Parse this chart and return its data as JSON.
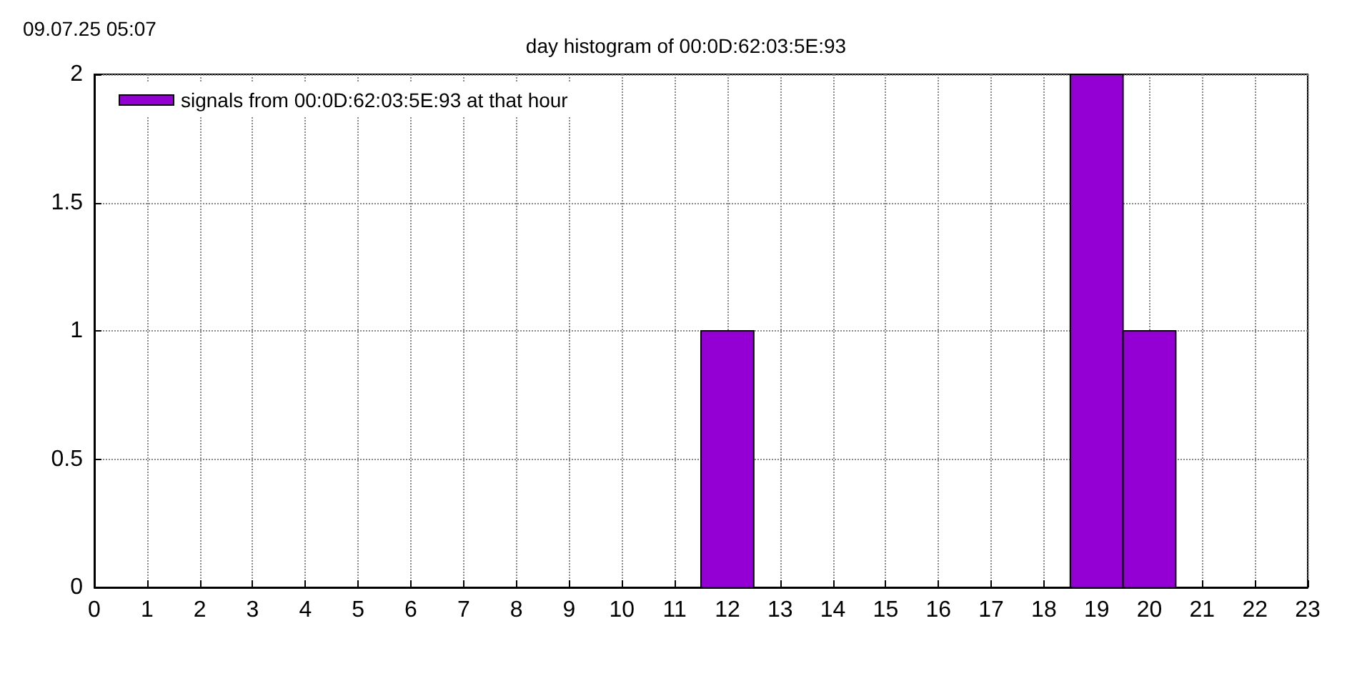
{
  "chart_data": {
    "type": "bar",
    "title": "day histogram of 00:0D:62:03:5E:93",
    "annotations": [
      "09.07.25 05:07"
    ],
    "x": [
      12,
      19,
      20
    ],
    "series": [
      {
        "name": "signals from 00:0D:62:03:5E:93 at that hour",
        "color": "#9400d3",
        "values": [
          1,
          2,
          1
        ]
      }
    ],
    "xlim": [
      0,
      23
    ],
    "xticks": [
      0,
      1,
      2,
      3,
      4,
      5,
      6,
      7,
      8,
      9,
      10,
      11,
      12,
      13,
      14,
      15,
      16,
      17,
      18,
      19,
      20,
      21,
      22,
      23
    ],
    "ylim": [
      0,
      2
    ],
    "yticks": [
      0,
      0.5,
      1,
      1.5,
      2
    ],
    "grid": true,
    "legend": "top left"
  }
}
